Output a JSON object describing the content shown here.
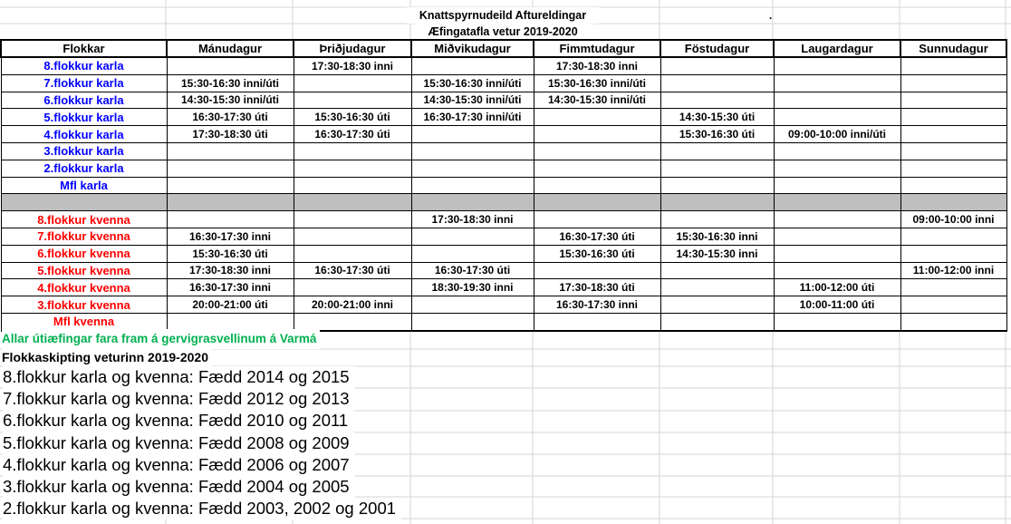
{
  "titles": {
    "line1": "Knattspyrnudeild Aftureldingar",
    "line2": "Æfingatafla vetur 2019-2020",
    "stray_dot": "."
  },
  "table": {
    "headers": [
      "Flokkar",
      "Mánudagur",
      "Þriðjudagur",
      "Miðvikudagur",
      "Fimmtudagur",
      "Föstudagur",
      "Laugardagur",
      "Sunnudagur"
    ],
    "karla_rows": [
      {
        "label": "8.flokkur karla",
        "cells": [
          "",
          "17:30-18:30 inni",
          "",
          "17:30-18:30 inni",
          "",
          "",
          ""
        ]
      },
      {
        "label": "7.flokkur karla",
        "cells": [
          "15:30-16:30 inni/úti",
          "",
          "15:30-16:30 inni/úti",
          "15:30-16:30 inni/úti",
          "",
          "",
          ""
        ]
      },
      {
        "label": "6.flokkur karla",
        "cells": [
          "14:30-15:30 inni/úti",
          "",
          "14:30-15:30 inni/úti",
          "14:30-15:30 inni/úti",
          "",
          "",
          ""
        ]
      },
      {
        "label": "5.flokkur karla",
        "cells": [
          "16:30-17:30 úti",
          "15:30-16:30 úti",
          "16:30-17:30 inni/úti",
          "",
          "14:30-15:30 úti",
          "",
          ""
        ]
      },
      {
        "label": "4.flokkur karla",
        "cells": [
          "17:30-18:30 úti",
          "16:30-17:30 úti",
          "",
          "",
          "15:30-16:30 úti",
          "09:00-10:00 inni/úti",
          ""
        ]
      },
      {
        "label": "3.flokkur karla",
        "cells": [
          "",
          "",
          "",
          "",
          "",
          "",
          ""
        ]
      },
      {
        "label": "2.flokkur karla",
        "cells": [
          "",
          "",
          "",
          "",
          "",
          "",
          ""
        ]
      },
      {
        "label": "Mfl karla",
        "cells": [
          "",
          "",
          "",
          "",
          "",
          "",
          ""
        ]
      }
    ],
    "kvenna_rows": [
      {
        "label": "8.flokkur kvenna",
        "cells": [
          "",
          "",
          "17:30-18:30 inni",
          "",
          "",
          "",
          "09:00-10:00 inni"
        ]
      },
      {
        "label": "7.flokkur kvenna",
        "cells": [
          "16:30-17:30 inni",
          "",
          "",
          "16:30-17:30 úti",
          "15:30-16:30 inni",
          "",
          ""
        ]
      },
      {
        "label": "6.flokkur kvenna",
        "cells": [
          "15:30-16:30 úti",
          "",
          "",
          "15:30-16:30 úti",
          "14:30-15:30 inni",
          "",
          ""
        ]
      },
      {
        "label": "5.flokkur kvenna",
        "cells": [
          "17:30-18:30 inni",
          "16:30-17:30 úti",
          "16:30-17:30 úti",
          "",
          "",
          "",
          "11:00-12:00 inni"
        ]
      },
      {
        "label": "4.flokkur kvenna",
        "cells": [
          "16:30-17:30 inni",
          "",
          "18:30-19:30 inni",
          "17:30-18:30 úti",
          "",
          "11:00-12:00 úti",
          ""
        ]
      },
      {
        "label": "3.flokkur kvenna",
        "cells": [
          "20:00-21:00 úti",
          "20:00-21:00 inni",
          "",
          "16:30-17:30 inni",
          "",
          "10:00-11:00 úti",
          ""
        ]
      },
      {
        "label": "Mfl kvenna",
        "cells": [
          "",
          "",
          "",
          "",
          "",
          "",
          ""
        ]
      }
    ]
  },
  "notes": {
    "outdoor": "Allar útiæfingar fara fram á gervigrasvellinum á Varmá",
    "division_heading": "Flokkaskipting veturinn 2019-2020"
  },
  "divisions": [
    "8.flokkur karla og kvenna: Fædd 2014 og 2015",
    "7.flokkur karla og kvenna: Fædd 2012 og 2013",
    "6.flokkur karla og kvenna: Fædd 2010 og 2011",
    "5.flokkur karla og kvenna: Fædd 2008 og 2009",
    "4.flokkur karla og kvenna: Fædd 2006 og 2007",
    "3.flokkur karla og kvenna: Fædd 2004 og 2005",
    "2.flokkur karla og kvenna: Fædd 2003, 2002 og 2001"
  ],
  "colors": {
    "karla_text": "#0000ff",
    "kvenna_text": "#ff0000",
    "outdoor_note": "#00b050",
    "separator_fill": "#bfbfbf",
    "gridline": "#d6d6d6",
    "border": "#000000"
  }
}
